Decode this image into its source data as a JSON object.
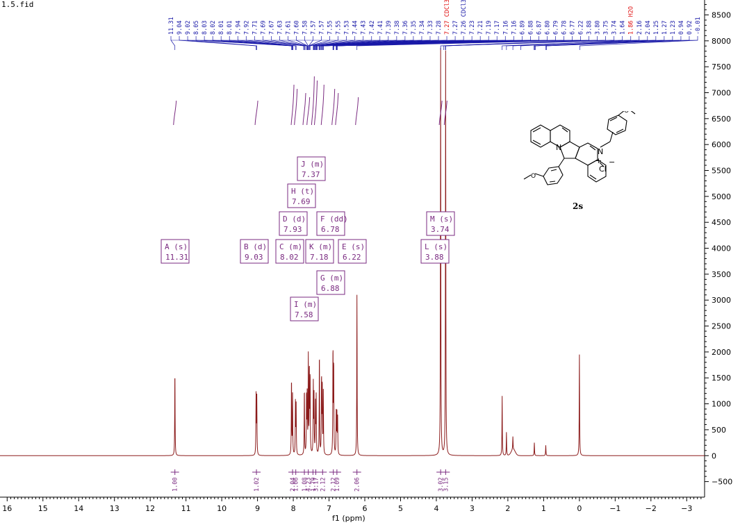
{
  "file_title": "1.5.fid",
  "compound": {
    "label": "2s",
    "atom_labels": [
      "N",
      "+",
      "N",
      "Cl",
      "−"
    ]
  },
  "chart_data": {
    "type": "line",
    "title": "",
    "xlabel": "f1 (ppm)",
    "ylabel": "",
    "x_axis": {
      "min": -3.5,
      "max": 16.2,
      "reversed": true,
      "ticks": [
        16,
        15,
        14,
        13,
        12,
        11,
        10,
        9,
        8,
        7,
        6,
        5,
        4,
        3,
        2,
        1,
        0,
        -1,
        -2,
        -3
      ]
    },
    "y_axis": {
      "min": -800,
      "max": 8600,
      "side": "right",
      "ticks": [
        8500,
        8000,
        7500,
        7000,
        6500,
        6000,
        5500,
        5000,
        4500,
        4000,
        3500,
        3000,
        2500,
        2000,
        1500,
        1000,
        500,
        0,
        -500
      ]
    },
    "grid": false,
    "series": [
      {
        "peaks": [
          {
            "ppm": 11.31,
            "height": 1650
          },
          {
            "ppm": 9.04,
            "height": 1150
          },
          {
            "ppm": 9.02,
            "height": 1100
          },
          {
            "ppm": 8.05,
            "height": 1500
          },
          {
            "ppm": 8.02,
            "height": 1150
          },
          {
            "ppm": 7.94,
            "height": 1000
          },
          {
            "ppm": 7.92,
            "height": 950
          },
          {
            "ppm": 7.69,
            "height": 1300
          },
          {
            "ppm": 7.63,
            "height": 1150
          },
          {
            "ppm": 7.61,
            "height": 1200
          },
          {
            "ppm": 7.58,
            "height": 1850
          },
          {
            "ppm": 7.55,
            "height": 1650
          },
          {
            "ppm": 7.53,
            "height": 1500
          },
          {
            "ppm": 7.44,
            "height": 1350
          },
          {
            "ppm": 7.42,
            "height": 1100
          },
          {
            "ppm": 7.38,
            "height": 950
          },
          {
            "ppm": 7.36,
            "height": 1100
          },
          {
            "ppm": 7.27,
            "height": 2000
          },
          {
            "ppm": 7.21,
            "height": 1500
          },
          {
            "ppm": 7.19,
            "height": 1350
          },
          {
            "ppm": 7.16,
            "height": 1200
          },
          {
            "ppm": 6.89,
            "height": 2050
          },
          {
            "ppm": 6.87,
            "height": 1750
          },
          {
            "ppm": 6.8,
            "height": 800
          },
          {
            "ppm": 6.78,
            "height": 750
          },
          {
            "ppm": 6.76,
            "height": 700
          },
          {
            "ppm": 6.22,
            "height": 3100
          },
          {
            "ppm": 3.88,
            "height": 7850
          },
          {
            "ppm": 3.74,
            "height": 7800
          },
          {
            "ppm": 2.16,
            "height": 1150
          },
          {
            "ppm": 2.04,
            "height": 450
          },
          {
            "ppm": 1.86,
            "height": 250
          },
          {
            "ppm": 1.26,
            "height": 250
          },
          {
            "ppm": 0.94,
            "height": 200
          },
          {
            "ppm": 0.0,
            "height": 1950
          }
        ]
      }
    ],
    "peak_labels": [
      "11.31",
      "9.04",
      "9.02",
      "8.05",
      "8.03",
      "8.02",
      "8.01",
      "8.01",
      "7.94",
      "7.92",
      "7.71",
      "7.69",
      "7.67",
      "7.63",
      "7.61",
      "7.60",
      "7.58",
      "7.57",
      "7.57",
      "7.55",
      "7.55",
      "7.53",
      "7.44",
      "7.43",
      "7.42",
      "7.41",
      "7.39",
      "7.38",
      "7.36",
      "7.35",
      "7.34",
      "7.33",
      "7.28",
      "7.27 CDCl3",
      "7.27",
      "7.26 CDCl3",
      "7.23",
      "7.21",
      "7.19",
      "7.17",
      "7.16",
      "7.16",
      "6.89",
      "6.88",
      "6.87",
      "6.80",
      "6.79",
      "6.78",
      "6.77",
      "6.22",
      "3.88",
      "3.80",
      "3.75",
      "3.74",
      "1.64",
      "1.86 H2O",
      "2.16",
      "2.04",
      "1.25",
      "1.27",
      "1.23",
      "0.94",
      "0.92",
      "-0.01"
    ],
    "highlight_labels": [
      "7.27 CDCl3",
      "1.86 H2O"
    ],
    "multiplets": [
      {
        "id": "A",
        "type": "s",
        "shift": "11.31"
      },
      {
        "id": "B",
        "type": "d",
        "shift": "9.03"
      },
      {
        "id": "C",
        "type": "m",
        "shift": "8.02"
      },
      {
        "id": "D",
        "type": "d",
        "shift": "7.93"
      },
      {
        "id": "E",
        "type": "s",
        "shift": "6.22"
      },
      {
        "id": "F",
        "type": "dd",
        "shift": "6.78"
      },
      {
        "id": "G",
        "type": "m",
        "shift": "6.88"
      },
      {
        "id": "H",
        "type": "t",
        "shift": "7.69"
      },
      {
        "id": "I",
        "type": "m",
        "shift": "7.58"
      },
      {
        "id": "J",
        "type": "m",
        "shift": "7.37"
      },
      {
        "id": "K",
        "type": "m",
        "shift": "7.18"
      },
      {
        "id": "L",
        "type": "s",
        "shift": "3.88"
      },
      {
        "id": "M",
        "type": "s",
        "shift": "3.74"
      }
    ],
    "integrals": [
      {
        "ppm": 11.31,
        "value": "1.00"
      },
      {
        "ppm": 9.03,
        "value": "1.02"
      },
      {
        "ppm": 8.02,
        "value": "2.04"
      },
      {
        "ppm": 7.93,
        "value": "1.06"
      },
      {
        "ppm": 7.69,
        "value": "1.08"
      },
      {
        "ppm": 7.58,
        "value": "4.23"
      },
      {
        "ppm": 7.45,
        "value": "1.79"
      },
      {
        "ppm": 7.37,
        "value": "3.17"
      },
      {
        "ppm": 7.18,
        "value": "2.12"
      },
      {
        "ppm": 6.88,
        "value": "2.12"
      },
      {
        "ppm": 6.78,
        "value": "1.09"
      },
      {
        "ppm": 6.22,
        "value": "2.06"
      },
      {
        "ppm": 3.88,
        "value": "3.02"
      },
      {
        "ppm": 3.74,
        "value": "3.15"
      }
    ],
    "colors": {
      "spectrum": "#8b1a1a",
      "labels": "#1a1aa8",
      "highlight": "#e01010",
      "multiplet": "#7a2a80",
      "integral": "#7a2a80"
    }
  }
}
